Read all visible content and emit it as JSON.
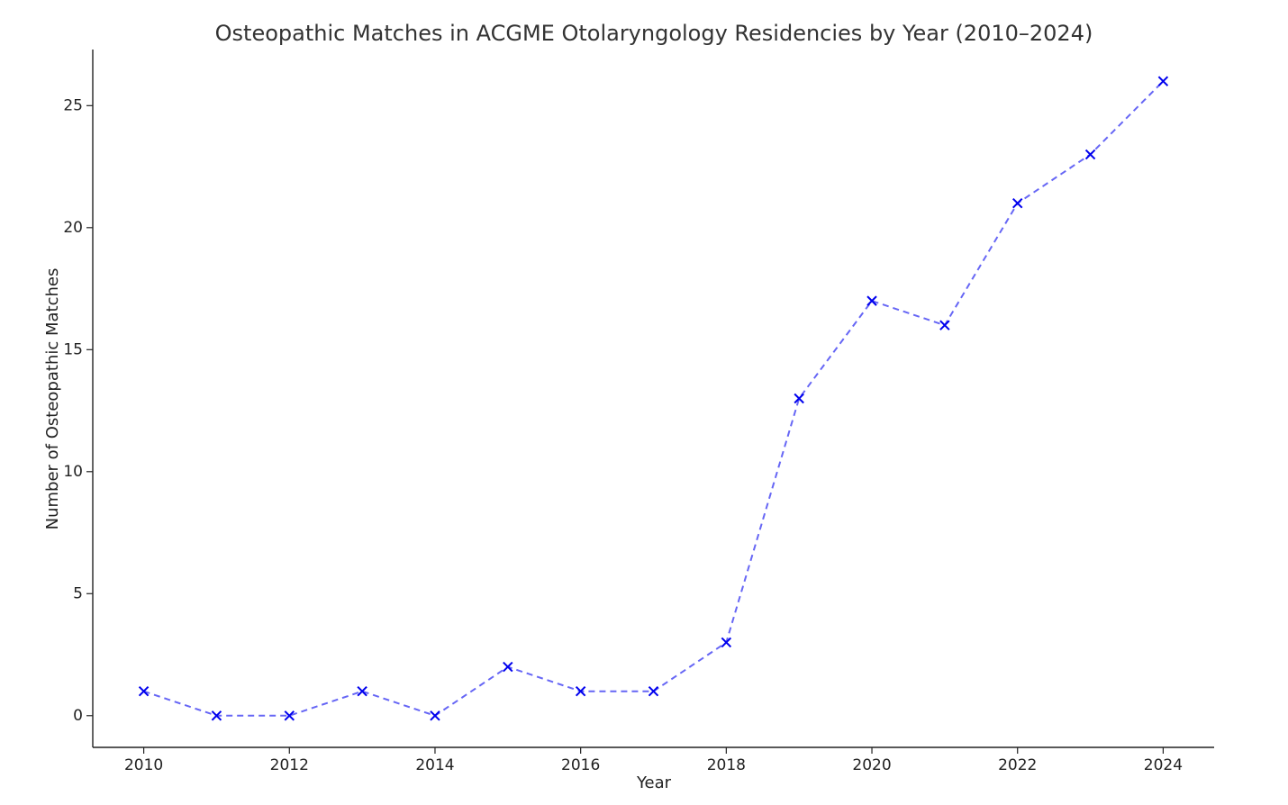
{
  "chart_data": {
    "type": "line",
    "title": "Osteopathic Matches in ACGME Otolaryngology Residencies by Year (2010–2024)",
    "xlabel": "Year",
    "ylabel": "Number of Osteopathic Matches",
    "x": [
      2010,
      2011,
      2012,
      2013,
      2014,
      2015,
      2016,
      2017,
      2018,
      2019,
      2020,
      2021,
      2022,
      2023,
      2024
    ],
    "series": [
      {
        "values": [
          1,
          0,
          0,
          1,
          0,
          2,
          1,
          1,
          3,
          13,
          17,
          16,
          21,
          23,
          26
        ],
        "color": "#0000ee",
        "line_style": "dashed",
        "marker": "x"
      }
    ],
    "xticks": [
      "2010",
      "2012",
      "2014",
      "2016",
      "2018",
      "2020",
      "2022",
      "2024"
    ],
    "yticks": [
      "0",
      "5",
      "10",
      "15",
      "20",
      "25"
    ],
    "xlim": [
      2009.3,
      2024.7
    ],
    "ylim": [
      -1.3,
      27.3
    ],
    "grid": false,
    "legend": false
  }
}
